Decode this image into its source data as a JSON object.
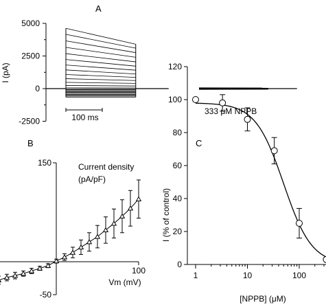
{
  "chart_data": [
    {
      "panel": "A",
      "type": "line",
      "ylabel": "I (pA)",
      "ylim": [
        -2500,
        5000
      ],
      "yticks": [
        5000,
        2500,
        0,
        -2500
      ],
      "yticks_minor": [
        3750,
        1250,
        -1250
      ],
      "scale_bar_label": "100 ms",
      "scale_bar_ms": 100,
      "pulse_ms": 192,
      "holding_ms": 120,
      "traces_control": {
        "start_pA": [
          -650,
          -580,
          -510,
          -440,
          -370,
          -300,
          -230,
          -160,
          -90,
          -20,
          60,
          240,
          480,
          760,
          1080,
          1430,
          1810,
          2230,
          2680,
          3160,
          3660,
          4160,
          4620
        ],
        "end_pA": [
          -650,
          -580,
          -510,
          -440,
          -370,
          -300,
          -230,
          -160,
          -90,
          -20,
          50,
          200,
          400,
          620,
          860,
          1120,
          1410,
          1720,
          2050,
          2400,
          2760,
          3100,
          3400
        ]
      },
      "nppb_label": "333 μM NPPB",
      "nppb_range_pA": [
        -60,
        60
      ]
    },
    {
      "panel": "B",
      "type": "scatter",
      "legend_title": "Current density",
      "legend_unit": "(pA/pF)",
      "xlabel": "Vm (mV)",
      "xlim": [
        -100,
        100
      ],
      "xtick_labels": [
        "-100",
        "100"
      ],
      "ylim": [
        -50,
        150
      ],
      "ytick_labels": [
        "150",
        "-50"
      ],
      "marker": "open triangle",
      "x": [
        -100,
        -90,
        -80,
        -70,
        -60,
        -50,
        -40,
        -30,
        -20,
        -10,
        0,
        10,
        20,
        30,
        40,
        50,
        60,
        70,
        80,
        90,
        100
      ],
      "y": [
        -35,
        -32,
        -30,
        -28,
        -24,
        -21,
        -18,
        -14,
        -10,
        -6,
        1,
        7,
        14,
        22,
        30,
        38,
        48,
        58,
        69,
        81,
        95
      ],
      "err": [
        7,
        7,
        6,
        6,
        5,
        5,
        4,
        4,
        3,
        3,
        3,
        5,
        8,
        11,
        14,
        17,
        20,
        22,
        25,
        27,
        29
      ]
    },
    {
      "panel": "C",
      "type": "scatter",
      "xlabel": "[NPPB] (μM)",
      "ylabel": "I (% of control)",
      "xscale": "log",
      "xlim": [
        1,
        333
      ],
      "xtick_values": [
        1,
        10,
        100
      ],
      "xtick_labels": [
        "1",
        "10",
        "100"
      ],
      "ylim": [
        0,
        120
      ],
      "yticks": [
        0,
        20,
        40,
        60,
        80,
        100,
        120
      ],
      "marker": "open circle",
      "x": [
        1,
        3.3,
        10,
        33,
        100,
        333
      ],
      "y": [
        100,
        98,
        88,
        69,
        25,
        3
      ],
      "err": [
        0,
        5,
        7,
        8,
        9,
        0
      ],
      "fit": {
        "IC50_uM": 50,
        "hill": 1.6,
        "top": 98
      }
    }
  ]
}
